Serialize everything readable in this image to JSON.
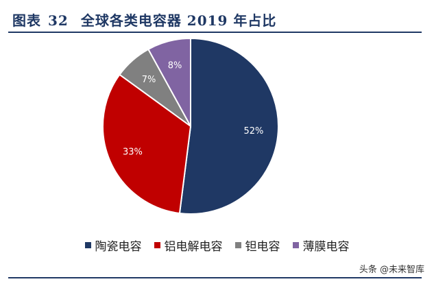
{
  "header": {
    "figure_label": "图表",
    "figure_number": "32",
    "title_text": "全球各类电容器 2019 年占比"
  },
  "chart_data": {
    "type": "pie",
    "title": "全球各类电容器 2019 年占比",
    "categories": [
      "陶瓷电容",
      "铝电解电容",
      "钽电容",
      "薄膜电容"
    ],
    "values": [
      52,
      33,
      7,
      8
    ],
    "labels": [
      "52%",
      "33%",
      "7%",
      "8%"
    ],
    "colors": [
      "#1f3864",
      "#c00000",
      "#808080",
      "#8064a2"
    ],
    "start_angle": "12 o'clock",
    "direction": "clockwise",
    "legend_position": "bottom"
  },
  "legend": {
    "items": [
      "陶瓷电容",
      "铝电解电容",
      "钽电容",
      "薄膜电容"
    ]
  },
  "watermark": {
    "text": "头条 @未来智库"
  }
}
